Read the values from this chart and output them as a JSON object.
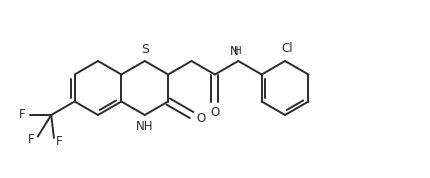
{
  "bg_color": "#ffffff",
  "line_color": "#2b2b2b",
  "line_width": 1.4,
  "font_size": 8.5,
  "figsize": [
    4.3,
    1.78
  ],
  "dpi": 100,
  "xlim": [
    0,
    430
  ],
  "ylim": [
    0,
    178
  ]
}
